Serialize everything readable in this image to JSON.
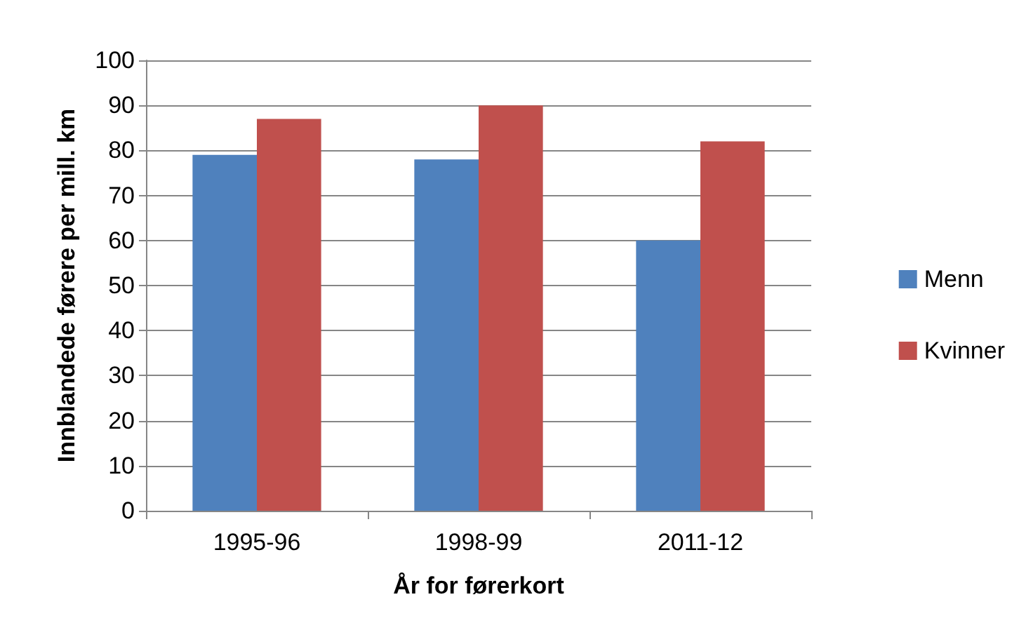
{
  "chart_data": {
    "type": "bar",
    "xlabel": "År for førerkort",
    "ylabel": "Innblandede førere per mill. km",
    "categories": [
      "1995-96",
      "1998-99",
      "2011-12"
    ],
    "series": [
      {
        "name": "Menn",
        "color": "#4f81bd",
        "values": [
          79,
          78,
          60
        ]
      },
      {
        "name": "Kvinner",
        "color": "#c0504d",
        "values": [
          87,
          90,
          82
        ]
      }
    ],
    "ylim": [
      0,
      100
    ],
    "yticks": [
      0,
      10,
      20,
      30,
      40,
      50,
      60,
      70,
      80,
      90,
      100
    ],
    "grid": "y",
    "legend": "right"
  }
}
